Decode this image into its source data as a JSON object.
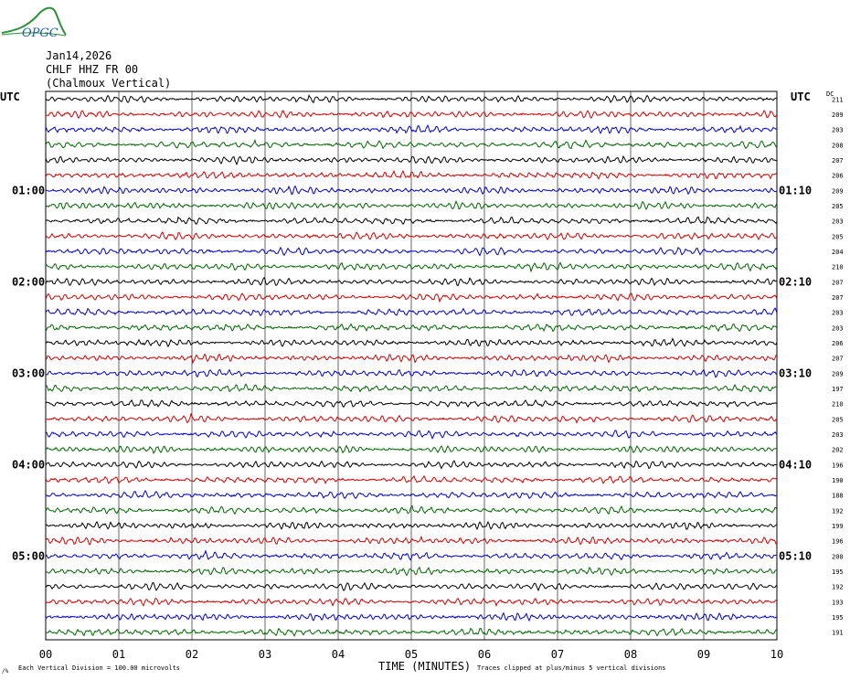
{
  "logo": {
    "text": "OPGC"
  },
  "header": {
    "date": "Jan14,2026",
    "station": "CHLF HHZ FR 00",
    "location": "(Chalmoux Vertical)"
  },
  "labels": {
    "utc_left": "UTC",
    "utc_right": "UTC",
    "dc": "DC",
    "x_title": "TIME (MINUTES)",
    "scale_note": "Each Vertical Division =  100.00 microvolts",
    "clip_note": "Traces clipped at plus/minus 5 vertical divisions",
    "corner_mark": "/%"
  },
  "colors": {
    "cycle": [
      "#000000",
      "#d40000",
      "#0000cc",
      "#006600"
    ]
  },
  "chart_data": {
    "type": "line",
    "title": "",
    "xlabel": "TIME (MINUTES)",
    "xlim": [
      0,
      10
    ],
    "x_ticks": [
      "00",
      "01",
      "02",
      "03",
      "04",
      "05",
      "06",
      "07",
      "08",
      "09",
      "10"
    ],
    "rows_per_hour": 6,
    "left_hour_labels": [
      {
        "row": 6,
        "text": "01:00"
      },
      {
        "row": 12,
        "text": "02:00"
      },
      {
        "row": 18,
        "text": "03:00"
      },
      {
        "row": 24,
        "text": "04:00"
      },
      {
        "row": 30,
        "text": "05:00"
      }
    ],
    "right_hour_labels": [
      {
        "row": 6,
        "text": "01:10"
      },
      {
        "row": 12,
        "text": "02:10"
      },
      {
        "row": 18,
        "text": "03:10"
      },
      {
        "row": 24,
        "text": "04:10"
      },
      {
        "row": 30,
        "text": "05:10"
      }
    ],
    "dc_offsets": [
      211,
      209,
      203,
      208,
      207,
      206,
      209,
      205,
      203,
      205,
      204,
      210,
      207,
      207,
      203,
      203,
      206,
      207,
      209,
      197,
      210,
      205,
      203,
      202,
      196,
      190,
      188,
      192,
      199,
      196,
      200,
      195,
      192,
      193,
      195,
      191
    ],
    "grid": true
  }
}
